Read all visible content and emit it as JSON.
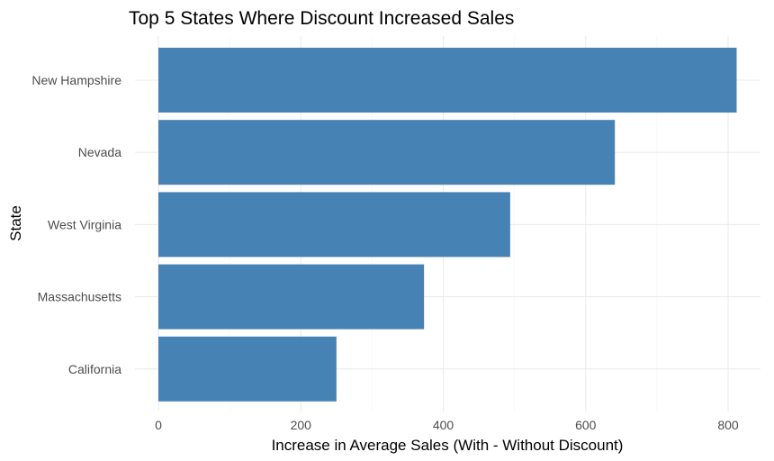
{
  "chart_data": {
    "type": "bar",
    "orientation": "horizontal",
    "title": "Top 5 States Where Discount Increased Sales",
    "xlabel": "Increase in Average Sales (With - Without Discount)",
    "ylabel": "State",
    "categories": [
      "New Hampshire",
      "Nevada",
      "West Virginia",
      "Massachusetts",
      "California"
    ],
    "values": [
      812,
      641,
      494,
      373,
      250
    ],
    "xlim": [
      0,
      845
    ],
    "x_ticks": [
      0,
      200,
      400,
      600,
      800
    ],
    "grid": true,
    "legend": "none",
    "bar_color": "#4682B4"
  }
}
